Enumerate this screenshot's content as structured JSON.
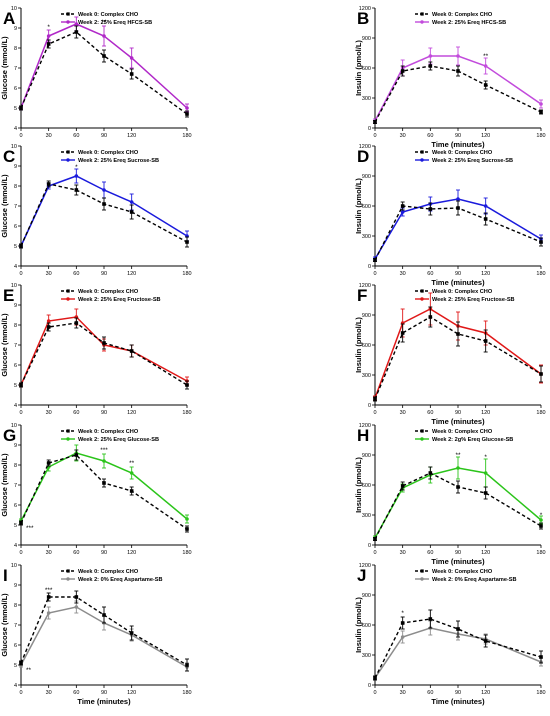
{
  "chart_data": [
    {
      "panel_label": "A",
      "type": "line",
      "x": [
        0,
        30,
        60,
        90,
        120,
        180
      ],
      "xlabel": "",
      "ylabel": "Glucose (mmol/L)",
      "ylim": [
        4,
        10
      ],
      "xlim": [
        0,
        180
      ],
      "xticks": [
        "0",
        "30",
        "60",
        "90",
        "120",
        "180"
      ],
      "yticks": [
        "4",
        "5",
        "6",
        "7",
        "8",
        "9",
        "10"
      ],
      "legend": "top-right",
      "series": [
        {
          "name": "Week 0: Complex CHO",
          "values": [
            5.0,
            8.2,
            8.8,
            7.6,
            6.7,
            4.7
          ],
          "err": [
            0.1,
            0.2,
            0.3,
            0.3,
            0.25,
            0.15
          ]
        },
        {
          "name": "Week 2: 25% Ereq HFCS-SB",
          "values": [
            5.0,
            8.6,
            9.2,
            8.6,
            7.5,
            5.0
          ],
          "err": [
            0.1,
            0.3,
            0.35,
            0.5,
            0.5,
            0.2
          ]
        }
      ],
      "annotations": [
        {
          "x": 30,
          "y": 9.05,
          "text": "*"
        },
        {
          "x": 90,
          "y": 9.3,
          "text": "**"
        }
      ]
    },
    {
      "panel_label": "B",
      "type": "line",
      "x": [
        0,
        30,
        60,
        90,
        120,
        180
      ],
      "xlabel": "Time (minutes)",
      "ylabel": "Insulin (pmol/L)",
      "ylim": [
        0,
        1200
      ],
      "xlim": [
        0,
        180
      ],
      "xticks": [
        "0",
        "30",
        "60",
        "90",
        "120",
        "180"
      ],
      "yticks": [
        "0",
        "300",
        "600",
        "900",
        "1200"
      ],
      "legend": "top-right",
      "series": [
        {
          "name": "Week 0: Complex CHO",
          "values": [
            60,
            570,
            620,
            570,
            430,
            160
          ],
          "err": [
            15,
            50,
            40,
            50,
            40,
            20
          ]
        },
        {
          "name": "Week 2: 25% Ereq HFCS-SB",
          "values": [
            70,
            600,
            720,
            720,
            620,
            240
          ],
          "err": [
            20,
            80,
            80,
            90,
            80,
            40
          ]
        }
      ],
      "annotations": [
        {
          "x": 120,
          "y": 720,
          "text": "**"
        }
      ]
    },
    {
      "panel_label": "C",
      "type": "line",
      "x": [
        0,
        30,
        60,
        90,
        120,
        180
      ],
      "xlabel": "",
      "ylabel": "Glucose (mmol/L)",
      "ylim": [
        4,
        10
      ],
      "xlim": [
        0,
        180
      ],
      "xticks": [
        "0",
        "30",
        "60",
        "90",
        "120",
        "180"
      ],
      "yticks": [
        "4",
        "5",
        "6",
        "7",
        "8",
        "9",
        "10"
      ],
      "legend": "top-right",
      "series": [
        {
          "name": "Week 0: Complex CHO",
          "values": [
            5.0,
            8.1,
            7.8,
            7.1,
            6.7,
            5.2
          ],
          "err": [
            0.1,
            0.15,
            0.25,
            0.3,
            0.35,
            0.25
          ]
        },
        {
          "name": "Week 2: 25% Ereq Sucrose-SB",
          "values": [
            5.0,
            8.0,
            8.5,
            7.8,
            7.2,
            5.5
          ],
          "err": [
            0.1,
            0.15,
            0.35,
            0.4,
            0.4,
            0.25
          ]
        }
      ],
      "annotations": [
        {
          "x": 60,
          "y": 8.95,
          "text": "*"
        }
      ]
    },
    {
      "panel_label": "D",
      "type": "line",
      "x": [
        0,
        30,
        60,
        90,
        120,
        180
      ],
      "xlabel": "Time (minutes)",
      "ylabel": "Insulin (pmol/L)",
      "ylim": [
        0,
        1200
      ],
      "xlim": [
        0,
        180
      ],
      "xticks": [
        "0",
        "30",
        "60",
        "90",
        "120",
        "180"
      ],
      "yticks": [
        "0",
        "300",
        "600",
        "900",
        "1200"
      ],
      "legend": "top-right",
      "series": [
        {
          "name": "Week 0: Complex CHO",
          "values": [
            60,
            600,
            570,
            580,
            470,
            240
          ],
          "err": [
            15,
            40,
            60,
            70,
            60,
            40
          ]
        },
        {
          "name": "Week 2: 25% Ereq Sucrose-SB",
          "values": [
            70,
            540,
            620,
            670,
            600,
            270
          ],
          "err": [
            20,
            40,
            70,
            90,
            80,
            40
          ]
        }
      ],
      "annotations": []
    },
    {
      "panel_label": "E",
      "type": "line",
      "x": [
        0,
        30,
        60,
        90,
        120,
        180
      ],
      "xlabel": "",
      "ylabel": "Glucose (mmol/L)",
      "ylim": [
        4,
        10
      ],
      "xlim": [
        0,
        180
      ],
      "xticks": [
        "0",
        "30",
        "60",
        "90",
        "120",
        "180"
      ],
      "yticks": [
        "4",
        "5",
        "6",
        "7",
        "8",
        "9",
        "10"
      ],
      "legend": "top-right",
      "series": [
        {
          "name": "Week 0: Complex CHO",
          "values": [
            5.0,
            7.9,
            8.1,
            7.1,
            6.7,
            5.0
          ],
          "err": [
            0.1,
            0.2,
            0.25,
            0.3,
            0.3,
            0.2
          ]
        },
        {
          "name": "Week 2: 25% Ereq Fructose-SB",
          "values": [
            5.0,
            8.2,
            8.4,
            7.0,
            6.7,
            5.2
          ],
          "err": [
            0.1,
            0.3,
            0.4,
            0.3,
            0.3,
            0.2
          ]
        }
      ],
      "annotations": []
    },
    {
      "panel_label": "F",
      "type": "line",
      "x": [
        0,
        30,
        60,
        90,
        120,
        180
      ],
      "xlabel": "Time (minutes)",
      "ylabel": "Insulin (pmol/L)",
      "ylim": [
        0,
        1200
      ],
      "xlim": [
        0,
        180
      ],
      "xticks": [
        "0",
        "30",
        "60",
        "90",
        "120",
        "180"
      ],
      "yticks": [
        "0",
        "300",
        "600",
        "900",
        "1200"
      ],
      "legend": "top-right",
      "series": [
        {
          "name": "Week 0: Complex CHO",
          "values": [
            60,
            720,
            880,
            710,
            640,
            310
          ],
          "err": [
            20,
            90,
            100,
            120,
            110,
            80
          ]
        },
        {
          "name": "Week 2: 25% Ereq Fructose-SB",
          "values": [
            70,
            820,
            960,
            790,
            720,
            310
          ],
          "err": [
            20,
            140,
            160,
            140,
            120,
            90
          ]
        }
      ],
      "annotations": []
    },
    {
      "panel_label": "G",
      "type": "line",
      "x": [
        0,
        30,
        60,
        90,
        120,
        180
      ],
      "xlabel": "",
      "ylabel": "Glucose (mmol/L)",
      "ylim": [
        4,
        10
      ],
      "xlim": [
        0,
        180
      ],
      "xticks": [
        "0",
        "30",
        "60",
        "90",
        "120",
        "180"
      ],
      "yticks": [
        "4",
        "5",
        "6",
        "7",
        "8",
        "9",
        "10"
      ],
      "legend": "top-right",
      "series": [
        {
          "name": "Week 0: Complex CHO",
          "values": [
            5.1,
            8.1,
            8.5,
            7.1,
            6.7,
            4.8
          ],
          "err": [
            0.1,
            0.15,
            0.25,
            0.2,
            0.2,
            0.15
          ]
        },
        {
          "name": "Week 2: 25% Ereq Glucose-SB",
          "values": [
            5.2,
            7.9,
            8.6,
            8.2,
            7.6,
            5.3
          ],
          "err": [
            0.1,
            0.2,
            0.4,
            0.35,
            0.3,
            0.2
          ]
        }
      ],
      "annotations": [
        {
          "x": 90,
          "y": 8.75,
          "text": "***"
        },
        {
          "x": 120,
          "y": 8.1,
          "text": "**"
        },
        {
          "x": 0,
          "y": 4.85,
          "text": "***"
        }
      ]
    },
    {
      "panel_label": "H",
      "type": "line",
      "x": [
        0,
        30,
        60,
        90,
        120,
        180
      ],
      "xlabel": "Time (minutes)",
      "ylabel": "Insulin (pmol/L)",
      "ylim": [
        0,
        1200
      ],
      "xlim": [
        0,
        180
      ],
      "xticks": [
        "0",
        "30",
        "60",
        "90",
        "120",
        "180"
      ],
      "yticks": [
        "0",
        "300",
        "600",
        "900",
        "1200"
      ],
      "legend": "top-right",
      "series": [
        {
          "name": "Week 0: Complex CHO",
          "values": [
            60,
            590,
            720,
            580,
            520,
            190
          ],
          "err": [
            15,
            40,
            60,
            60,
            60,
            30
          ]
        },
        {
          "name": "Week 2: 2g% Ereq Glucose-SB",
          "values": [
            70,
            570,
            700,
            770,
            720,
            250
          ],
          "err": [
            20,
            40,
            80,
            110,
            140,
            40
          ]
        }
      ],
      "annotations": [
        {
          "x": 90,
          "y": 900,
          "text": "**"
        },
        {
          "x": 120,
          "y": 880,
          "text": "*"
        },
        {
          "x": 180,
          "y": 300,
          "text": "*"
        }
      ]
    },
    {
      "panel_label": "I",
      "type": "line",
      "x": [
        0,
        30,
        60,
        90,
        120,
        180
      ],
      "xlabel": "Time (minutes)",
      "ylabel": "Glucose (mmol/L)",
      "ylim": [
        4,
        10
      ],
      "xlim": [
        0,
        180
      ],
      "xticks": [
        "0",
        "30",
        "60",
        "90",
        "120",
        "180"
      ],
      "yticks": [
        "4",
        "5",
        "6",
        "7",
        "8",
        "9",
        "10"
      ],
      "legend": "top-right",
      "series": [
        {
          "name": "Week 0: Complex CHO",
          "values": [
            5.1,
            8.4,
            8.4,
            7.5,
            6.6,
            5.0
          ],
          "err": [
            0.1,
            0.2,
            0.3,
            0.4,
            0.35,
            0.3
          ]
        },
        {
          "name": "Week 2: 0% Ereq Aspartame-SB",
          "values": [
            5.0,
            7.6,
            7.9,
            7.1,
            6.5,
            4.9
          ],
          "err": [
            0.1,
            0.3,
            0.3,
            0.35,
            0.3,
            0.2
          ]
        }
      ],
      "annotations": [
        {
          "x": 30,
          "y": 8.75,
          "text": "***"
        },
        {
          "x": 0,
          "y": 4.75,
          "text": "**"
        }
      ]
    },
    {
      "panel_label": "J",
      "type": "line",
      "x": [
        0,
        30,
        60,
        90,
        120,
        180
      ],
      "xlabel": "Time (minutes)",
      "ylabel": "Insulin (pmol/L)",
      "ylim": [
        0,
        1200
      ],
      "xlim": [
        0,
        180
      ],
      "xticks": [
        "0",
        "30",
        "60",
        "90",
        "120",
        "180"
      ],
      "yticks": [
        "0",
        "300",
        "600",
        "900",
        "1200"
      ],
      "legend": "top-right",
      "series": [
        {
          "name": "Week 0: Complex CHO",
          "values": [
            70,
            620,
            660,
            560,
            440,
            280
          ],
          "err": [
            20,
            60,
            90,
            80,
            60,
            60
          ]
        },
        {
          "name": "Week 2: 0% Ereq Aspartame-SB",
          "values": [
            70,
            480,
            570,
            510,
            460,
            230
          ],
          "err": [
            20,
            60,
            70,
            60,
            50,
            40
          ]
        }
      ],
      "annotations": [
        {
          "x": 30,
          "y": 720,
          "text": "*"
        }
      ]
    }
  ],
  "colors": {
    "week0": "#000000",
    "panel_A": "#b028c8",
    "panel_B": "#c24bdc",
    "panel_C": "#1a1adc",
    "panel_D": "#1a1adc",
    "panel_E": "#e01818",
    "panel_F": "#e01818",
    "panel_G": "#2bc41a",
    "panel_H": "#2bc41a",
    "panel_I": "#8c8c8c",
    "panel_J": "#8c8c8c"
  }
}
